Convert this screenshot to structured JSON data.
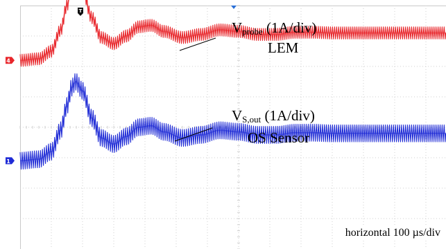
{
  "chart_data": {
    "type": "line",
    "title": "",
    "xlabel": "",
    "ylabel": "",
    "grid": true,
    "x_divisions": 10,
    "y_divisions": 8,
    "xlim": [
      0,
      1000
    ],
    "x_unit": "µs",
    "series": [
      {
        "channel": "4",
        "color": "#e8262b",
        "label_main": "V",
        "label_sub": "probe",
        "label_scale": " (1A/div)",
        "label_line2": "LEM",
        "baseline_div": 6.2,
        "scale_A_per_div": 1,
        "x": [
          0,
          60,
          100,
          130,
          150,
          165,
          178,
          200,
          230,
          260,
          300,
          340,
          380,
          420,
          460,
          520,
          580,
          640,
          700,
          760,
          820,
          880,
          940,
          1000
        ],
        "y": [
          0.0,
          0.05,
          0.3,
          1.0,
          1.8,
          2.4,
          2.6,
          2.3,
          1.4,
          0.75,
          0.55,
          0.8,
          1.1,
          1.15,
          0.95,
          0.75,
          0.85,
          1.0,
          0.95,
          0.85,
          0.85,
          0.92,
          0.92,
          0.9
        ],
        "ripple_amplitude": 0.2,
        "ripple_period_us": 6.5
      },
      {
        "channel": "1",
        "color": "#1f2bd6",
        "label_main": "V",
        "label_sub": "S,out",
        "label_scale": " (1A/div)",
        "label_line2": "OS Sensor",
        "baseline_div": 2.9,
        "scale_A_per_div": 1,
        "x": [
          0,
          60,
          100,
          130,
          150,
          165,
          178,
          200,
          230,
          260,
          300,
          340,
          380,
          420,
          460,
          520,
          580,
          640,
          700,
          760,
          820,
          880,
          940,
          1000
        ],
        "y": [
          0.0,
          0.05,
          0.3,
          1.0,
          1.8,
          2.4,
          2.6,
          2.3,
          1.4,
          0.75,
          0.55,
          0.8,
          1.1,
          1.15,
          0.95,
          0.75,
          0.85,
          1.0,
          0.95,
          0.85,
          0.85,
          0.92,
          0.92,
          0.9
        ],
        "ripple_amplitude": 0.28,
        "ripple_period_us": 6.5
      }
    ],
    "trigger_marker": "T",
    "footer_note": "horizontal 100 µs/div"
  }
}
